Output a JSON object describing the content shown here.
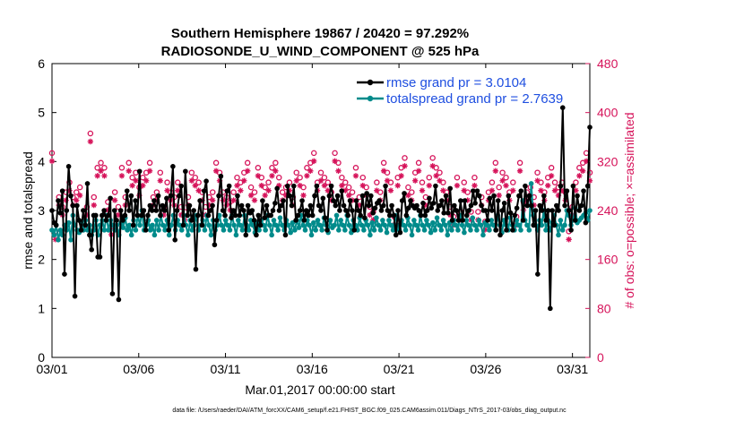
{
  "chart_data": {
    "type": "line",
    "title": "Southern Hemisphere 19867 / 20420 = 97.292%",
    "subtitle": "RADIOSONDE_U_WIND_COMPONENT @ 525 hPa",
    "xlabel": "Mar.01,2017 00:00:00 start",
    "ylabel": "rmse and totalspread",
    "y2label": "# of obs: o=possible; ×=assimilated",
    "footnote": "data file: /Users/raeder/DAI/ATM_forcXX/CAM6_setup/f.e21.FHIST_BGC.f09_025.CAM6assim.011/Diags_NTrS_2017-03/obs_diag_output.nc",
    "xlim": [
      1,
      32
    ],
    "ylim": [
      0,
      6
    ],
    "y2lim": [
      0,
      480
    ],
    "xticks": [
      1,
      6,
      11,
      16,
      21,
      26,
      31
    ],
    "xtick_labels": [
      "03/01",
      "03/06",
      "03/11",
      "03/16",
      "03/21",
      "03/26",
      "03/31"
    ],
    "yticks": [
      "0",
      "1",
      "2",
      "3",
      "4",
      "5",
      "6"
    ],
    "y2ticks": [
      "0",
      "80",
      "160",
      "240",
      "320",
      "400",
      "480"
    ],
    "legend_position": "top-right",
    "colors": {
      "rmse": "#000000",
      "spread": "#008b8b",
      "obs": "#d6135a",
      "legend_text": "#1f4fe0"
    },
    "series": [
      {
        "name": "rmse grand pr = 3.0104",
        "color": "#000000",
        "values": [
          3.0,
          2.75,
          2.7,
          3.2,
          2.95,
          3.4,
          1.7,
          3.0,
          3.9,
          3.3,
          3.1,
          1.25,
          3.1,
          2.8,
          2.6,
          3.0,
          2.7,
          3.55,
          2.5,
          2.2,
          2.9,
          2.9,
          2.05,
          2.05,
          2.9,
          3.0,
          2.8,
          2.9,
          3.25,
          1.3,
          3.0,
          2.8,
          1.18,
          3.0,
          2.8,
          2.9,
          3.4,
          3.0,
          3.3,
          2.7,
          3.2,
          2.9,
          3.8,
          2.9,
          3.0,
          2.6,
          2.9,
          3.1,
          3.0,
          3.2,
          3.0,
          3.3,
          2.9,
          3.1,
          3.0,
          3.25,
          2.6,
          3.3,
          3.9,
          2.4,
          3.0,
          3.3,
          3.5,
          2.7,
          3.8,
          2.9,
          3.1,
          2.8,
          3.0,
          1.8,
          2.9,
          3.2,
          2.7,
          3.4,
          3.6,
          2.9,
          3.0,
          3.1,
          2.3,
          2.8,
          3.3,
          3.7,
          3.0,
          2.9,
          3.4,
          3.5,
          2.85,
          3.0,
          2.9,
          3.3,
          2.9,
          3.1,
          3.0,
          2.5,
          3.1,
          2.95,
          3.0,
          2.8,
          2.5,
          2.9,
          2.7,
          3.2,
          2.85,
          3.1,
          2.9,
          2.9,
          3.0,
          3.15,
          3.45,
          3.0,
          3.1,
          3.2,
          2.5,
          3.5,
          3.3,
          3.1,
          3.5,
          2.8,
          2.9,
          3.0,
          3.2,
          2.8,
          3.0,
          2.9,
          3.1,
          2.9,
          3.3,
          3.5,
          3.1,
          3.0,
          3.25,
          2.85,
          2.6,
          3.3,
          3.5,
          3.2,
          3.1,
          3.3,
          3.0,
          3.4,
          3.1,
          3.0,
          2.9,
          3.2,
          3.0,
          2.6,
          3.2,
          3.0,
          2.9,
          3.3,
          2.85,
          3.35,
          3.1,
          3.3,
          2.95,
          3.05,
          3.15,
          3.2,
          3.0,
          3.1,
          3.5,
          3.0,
          2.9,
          3.1,
          2.9,
          2.5,
          3.0,
          2.55,
          3.2,
          3.35,
          2.9,
          3.05,
          3.2,
          3.1,
          3.05,
          3.1,
          3.0,
          2.9,
          3.15,
          2.9,
          3.0,
          3.25,
          3.05,
          3.15,
          3.5,
          3.0,
          3.1,
          3.2,
          2.95,
          3.3,
          2.95,
          3.45,
          2.8,
          3.1,
          3.0,
          2.8,
          3.2,
          2.8,
          3.2,
          2.9,
          3.0,
          3.1,
          3.4,
          3.15,
          3.4,
          3.3,
          3.1,
          3.0,
          3.0,
          2.8,
          3.25,
          3.0,
          3.3,
          2.6,
          3.2,
          2.5,
          3.0,
          3.15,
          2.6,
          3.3,
          2.95,
          2.6,
          2.9,
          3.05,
          3.3,
          3.4,
          2.8,
          3.5,
          3.1,
          3.3,
          3.1,
          2.7,
          3.0,
          1.7,
          3.1,
          3.0,
          3.3,
          2.8,
          3.0,
          1.0,
          3.0,
          2.7,
          3.1,
          3.0,
          3.5,
          5.1,
          3.1,
          3.4,
          3.0,
          2.6,
          3.5,
          2.8,
          3.3,
          3.0,
          3.1,
          3.4,
          2.75,
          3.5,
          4.7
        ],
        "missing": []
      },
      {
        "name": "totalspread grand pr = 2.7639",
        "color": "#008b8b",
        "values": [
          2.6,
          2.5,
          2.7,
          2.4,
          2.6,
          2.5,
          2.7,
          2.6,
          2.75,
          2.4,
          2.9,
          2.7,
          2.6,
          2.55,
          2.75,
          2.6,
          2.8,
          2.6,
          2.7,
          2.5,
          2.6,
          2.8,
          2.5,
          2.7,
          2.8,
          2.6,
          2.9,
          2.6,
          2.8,
          2.7,
          2.6,
          2.7,
          2.5,
          2.75,
          2.65,
          2.85,
          2.6,
          2.7,
          2.5,
          2.8,
          2.6,
          2.9,
          2.7,
          3.0,
          2.6,
          2.7,
          2.8,
          2.6,
          2.7,
          2.5,
          2.8,
          2.6,
          2.9,
          2.7,
          2.6,
          2.8,
          2.5,
          2.7,
          2.9,
          2.6,
          2.8,
          2.7,
          2.6,
          2.9,
          2.7,
          2.5,
          2.8,
          2.6,
          2.7,
          2.9,
          2.6,
          2.7,
          2.8,
          2.6,
          2.9,
          2.7,
          2.5,
          2.8,
          2.6,
          2.7,
          2.9,
          2.7,
          2.6,
          2.8,
          2.7,
          2.6,
          2.9,
          2.7,
          2.5,
          2.8,
          2.7,
          2.6,
          2.9,
          2.7,
          2.6,
          2.8,
          2.7,
          2.55,
          2.75,
          2.6,
          2.8,
          2.7,
          2.6,
          2.9,
          2.7,
          2.5,
          2.8,
          2.7,
          2.6,
          2.85,
          2.7,
          2.6,
          2.8,
          2.7,
          2.55,
          2.75,
          2.6,
          2.8,
          2.65,
          2.9,
          2.7,
          2.6,
          2.8,
          2.7,
          2.5,
          2.75,
          2.6,
          2.8,
          2.7,
          2.6,
          2.85,
          2.7,
          2.55,
          2.8,
          2.65,
          2.7,
          2.9,
          2.6,
          2.8,
          2.7,
          2.6,
          2.9,
          2.7,
          2.55,
          2.8,
          2.7,
          2.6,
          2.85,
          2.7,
          2.6,
          2.8,
          2.7,
          2.5,
          2.75,
          2.6,
          2.85,
          2.7,
          2.6,
          2.8,
          2.7,
          2.55,
          2.8,
          2.7,
          2.6,
          2.9,
          2.7,
          2.6,
          2.8,
          2.7,
          2.6,
          2.85,
          2.7,
          2.5,
          2.8,
          2.7,
          2.6,
          2.9,
          2.7,
          2.6,
          2.8,
          2.7,
          2.55,
          2.75,
          2.6,
          2.85,
          2.7,
          2.6,
          2.8,
          2.7,
          2.5,
          2.75,
          2.6,
          2.8,
          2.7,
          2.6,
          2.9,
          2.7,
          2.55,
          2.8,
          2.7,
          2.6,
          2.85,
          2.7,
          2.6,
          2.8,
          2.7,
          2.5,
          2.75,
          2.7,
          2.6,
          2.8,
          2.7,
          2.6,
          2.9,
          2.7,
          2.55,
          2.8,
          2.7,
          2.6,
          2.85,
          2.7,
          2.6,
          2.8,
          2.7,
          2.6,
          3.2,
          2.8,
          2.7,
          2.6,
          3.55,
          2.9,
          2.7,
          2.6,
          2.8,
          2.7,
          3.0,
          2.6,
          2.8,
          2.6,
          2.75,
          2.9,
          2.7,
          2.5,
          2.8,
          2.6,
          2.7,
          3.0,
          2.9,
          2.7,
          2.8,
          3.05,
          2.75,
          2.8,
          2.85,
          2.9,
          2.95,
          2.8,
          3.0
        ],
        "missing": []
      }
    ],
    "obs_possible": [
      4.1,
      2.5,
      3.2,
      3.0,
      3.3,
      3.5,
      3.2,
      3.3,
      3.4,
      2.7,
      3.0,
      4.5,
      3.2,
      3.8,
      3.9,
      3.8,
      3.1,
      2.6,
      3.3,
      3.0,
      3.8,
      3.2,
      3.9,
      3.6,
      3.7,
      3.4,
      3.6,
      3.7,
      3.9,
      3.2,
      3.3,
      3.7,
      3.0,
      3.5,
      3.3,
      3.2,
      3.5,
      3.0,
      2.9,
      3.2,
      3.7,
      3.6,
      3.5,
      3.3,
      3.0,
      3.2,
      3.3,
      3.9,
      3.7,
      3.3,
      3.2,
      3.1,
      3.3,
      3.6,
      3.5,
      3.7,
      3.9,
      3.4,
      3.3,
      3.8,
      3.6,
      3.4,
      3.5,
      3.8,
      3.9,
      3.6,
      3.3,
      3.4,
      3.5,
      3.2,
      3.7,
      3.6,
      3.4,
      3.8,
      3.9,
      4.1,
      3.5,
      3.7,
      3.6,
      3.5,
      3.3,
      4.1,
      3.9,
      3.6,
      3.5,
      3.4,
      3.3,
      3.8,
      3.2,
      3.6,
      3.4,
      3.0,
      2.9,
      3.5,
      3.3,
      3.9,
      3.7,
      3.5,
      2.8,
      3.6,
      3.8,
      4.0,
      3.4,
      3.3,
      3.7,
      3.9,
      3.5,
      3.2,
      3.6,
      4.0,
      3.8,
      3.7,
      3.5,
      3.3,
      3.0,
      2.8,
      3.6,
      2.9,
      3.5,
      3.3,
      2.9,
      3.6,
      2.9,
      3.2,
      2.7,
      3.3,
      3.5,
      3.9,
      3.4,
      3.7,
      3.6,
      3.3,
      3.5,
      2.8,
      3.9,
      3.1,
      3.3,
      3.4,
      3.2,
      3.7,
      3.5,
      3.3,
      3.6,
      3.8,
      3.5,
      3.4,
      3.5,
      3.3,
      2.5,
      3.0,
      3.5,
      3.8,
      3.9,
      4.1,
      3.7
    ],
    "obs_assim": []
  }
}
